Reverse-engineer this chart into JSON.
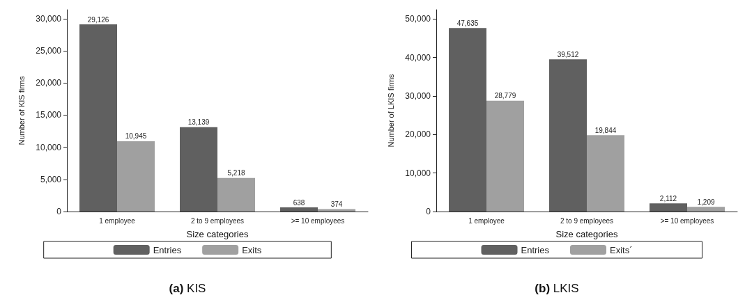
{
  "chart_data": [
    {
      "type": "bar",
      "title": "(a) KIS",
      "xlabel": "Size categories",
      "ylabel": "Number of KIS firms",
      "categories": [
        "1 employee",
        "2 to 9 employees",
        ">= 10 employees"
      ],
      "series": [
        {
          "name": "Entries",
          "color": "#606060",
          "values": [
            29126,
            13139,
            638
          ],
          "value_labels": [
            "29,126",
            "13,139",
            "638"
          ]
        },
        {
          "name": "Exits",
          "color": "#a0a0a0",
          "values": [
            10945,
            5218,
            374
          ],
          "value_labels": [
            "10,945",
            "5,218",
            "374"
          ]
        }
      ],
      "ylim": [
        0,
        31400
      ],
      "yticks": [
        {
          "value": 0,
          "label": "0"
        },
        {
          "value": 5000,
          "label": "5,000"
        },
        {
          "value": 10000,
          "label": "10,000"
        },
        {
          "value": 15000,
          "label": "15,000"
        },
        {
          "value": 20000,
          "label": "20,000"
        },
        {
          "value": 25000,
          "label": "25,000"
        },
        {
          "value": 30000,
          "label": "30,000"
        }
      ],
      "legend": "bottom",
      "grid": false
    },
    {
      "type": "bar",
      "title": "(b) LKIS",
      "xlabel": "Size categories",
      "ylabel": "Number of LKIS firms",
      "categories": [
        "1 employee",
        "2 to 9 employees",
        ">= 10 employees"
      ],
      "series": [
        {
          "name": "Entries",
          "color": "#606060",
          "values": [
            47635,
            39512,
            2112
          ],
          "value_labels": [
            "47,635",
            "39,512",
            "2,112"
          ]
        },
        {
          "name": "Exits´",
          "color": "#a0a0a0",
          "values": [
            28779,
            19844,
            1209
          ],
          "value_labels": [
            "28,779",
            "19,844",
            "1,209"
          ]
        }
      ],
      "ylim": [
        0,
        52400
      ],
      "yticks": [
        {
          "value": 0,
          "label": "0"
        },
        {
          "value": 10000,
          "label": "10,000"
        },
        {
          "value": 20000,
          "label": "20,000"
        },
        {
          "value": 30000,
          "label": "30,000"
        },
        {
          "value": 40000,
          "label": "40,000"
        },
        {
          "value": 50000,
          "label": "50,000"
        }
      ],
      "legend": "bottom",
      "grid": false
    }
  ]
}
